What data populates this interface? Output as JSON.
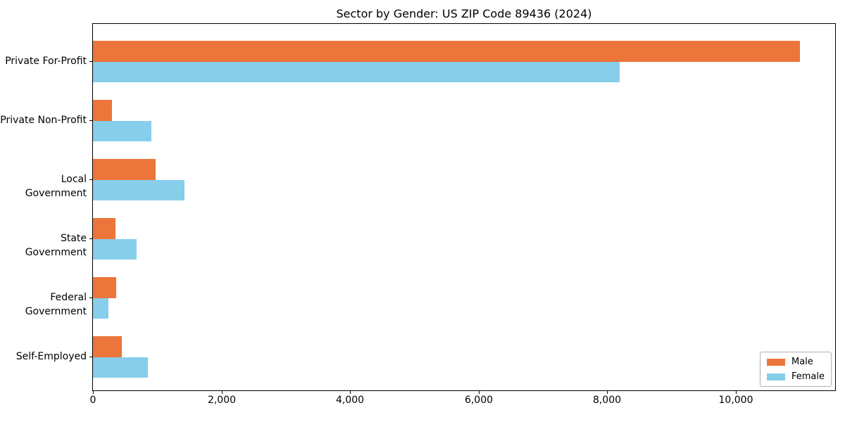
{
  "chart_data": {
    "type": "bar",
    "orientation": "horizontal",
    "title": "Sector by Gender: US ZIP Code 89436 (2024)",
    "categories": [
      "Private For-Profit",
      "Private Non-Profit",
      "Local Government",
      "State Government",
      "Federal Government",
      "Self-Employed"
    ],
    "series": [
      {
        "name": "Male",
        "color": "#EB753A",
        "values": [
          11000,
          300,
          970,
          350,
          360,
          450
        ]
      },
      {
        "name": "Female",
        "color": "#87CEEB",
        "values": [
          8200,
          910,
          1430,
          680,
          240,
          850
        ]
      }
    ],
    "xlabel": "",
    "ylabel": "",
    "xlim": [
      0,
      11550
    ],
    "xticks": [
      0,
      2000,
      4000,
      6000,
      8000,
      10000
    ],
    "xtick_labels": [
      "0",
      "2,000",
      "4,000",
      "6,000",
      "8,000",
      "10,000"
    ],
    "grid": false,
    "legend": {
      "position": "lower right",
      "entries": [
        "Male",
        "Female"
      ]
    },
    "colors": {
      "male": "#EB753A",
      "female": "#87CEEB",
      "spine": "#000000",
      "background": "#ffffff",
      "legend_border": "#b0b0b0"
    }
  }
}
